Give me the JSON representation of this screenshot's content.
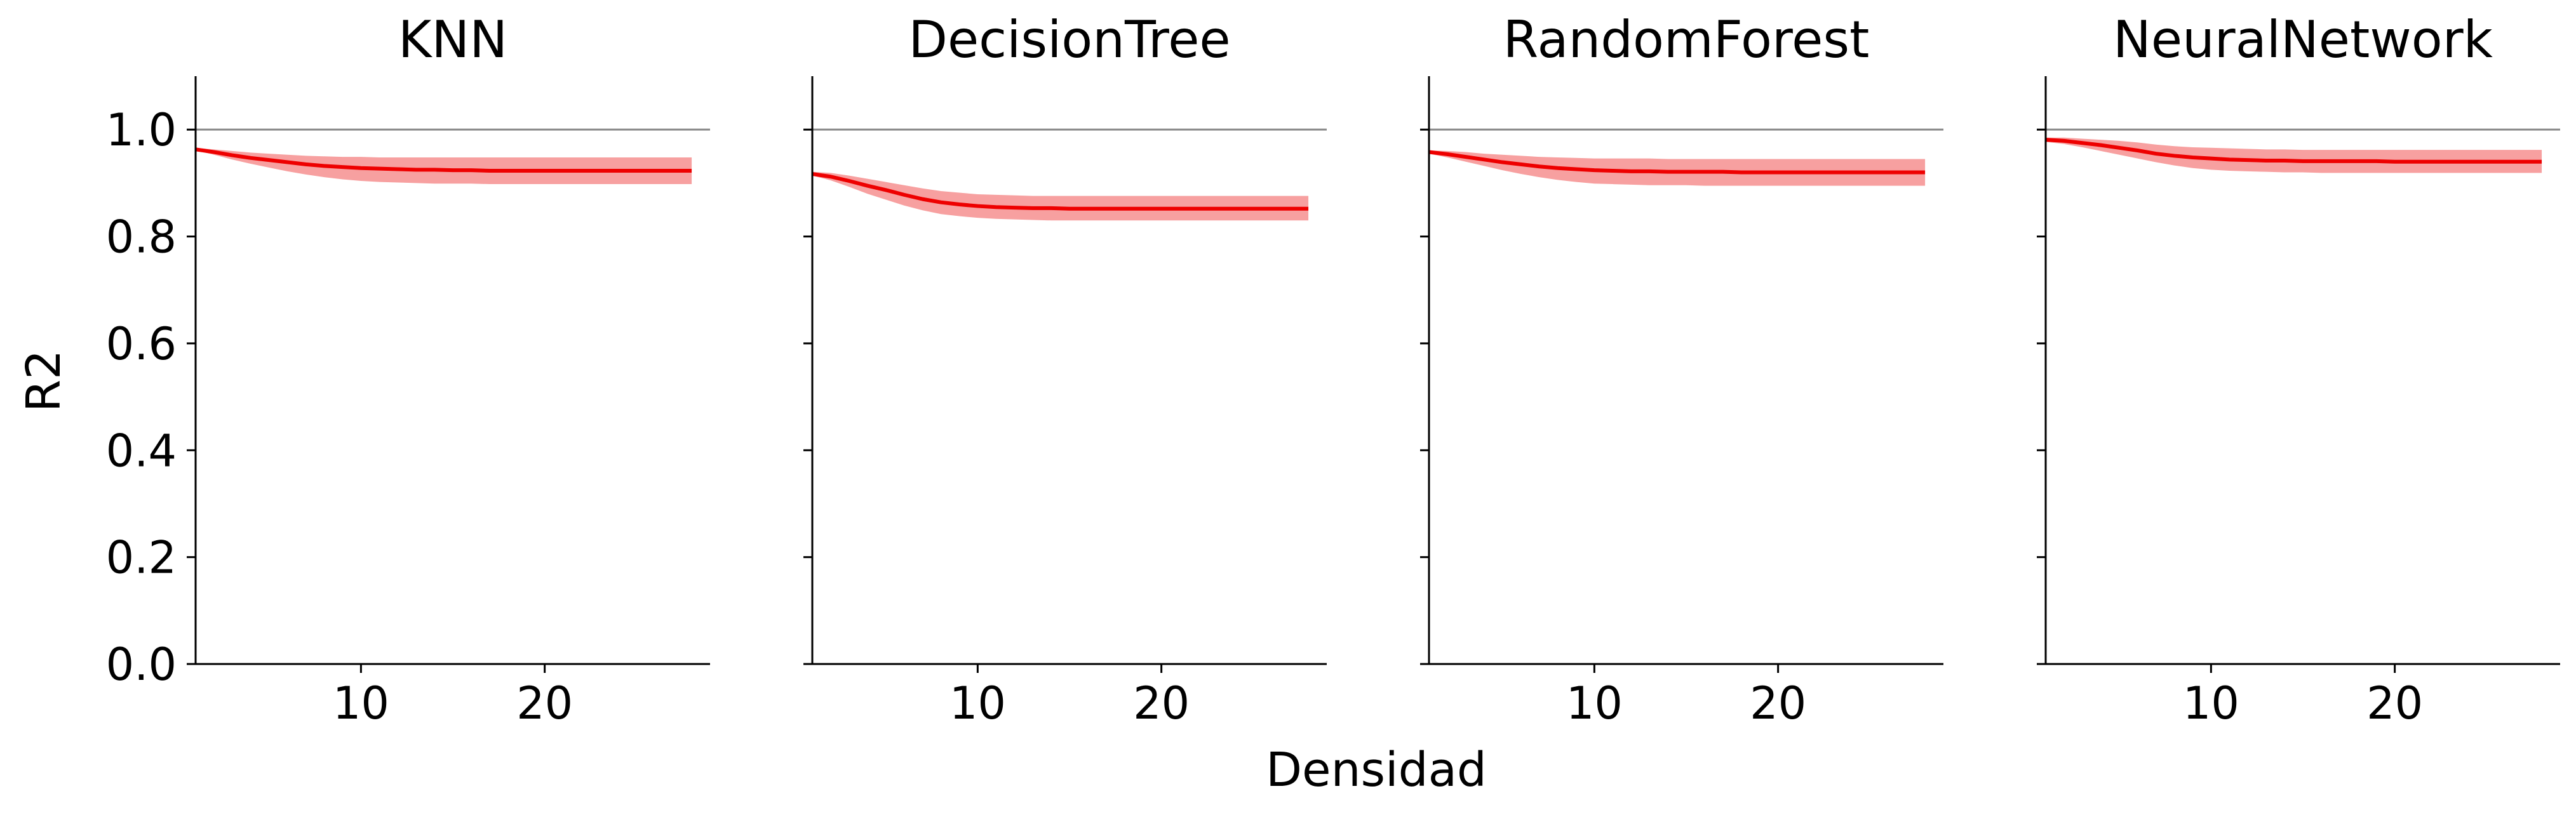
{
  "figure": {
    "xlabel": "Densidad",
    "ylabel": "R2"
  },
  "chart_data": [
    {
      "type": "line",
      "title": "KNN",
      "xlabel": "Densidad",
      "ylabel": "R2",
      "xlim": [
        1,
        29
      ],
      "ylim": [
        0.0,
        1.1
      ],
      "xticks": [
        10,
        20
      ],
      "xtick_labels": [
        "10",
        "20"
      ],
      "yticks": [
        0.0,
        0.2,
        0.4,
        0.6,
        0.8,
        1.0
      ],
      "ytick_labels": [
        "0.0",
        "0.2",
        "0.4",
        "0.6",
        "0.8",
        "1.0"
      ],
      "reference_line": 1.0,
      "grid": false,
      "line_color": "#ee0000",
      "band_color": "#f7a0a0",
      "reference_color": "#888888",
      "series": [
        {
          "x": [
            1,
            2,
            3,
            4,
            5,
            6,
            7,
            8,
            9,
            10,
            11,
            12,
            13,
            14,
            15,
            16,
            17,
            18,
            19,
            20,
            21,
            22,
            23,
            24,
            25,
            26,
            27,
            28
          ],
          "values": [
            0.963,
            0.958,
            0.952,
            0.947,
            0.943,
            0.939,
            0.935,
            0.932,
            0.93,
            0.928,
            0.927,
            0.926,
            0.925,
            0.925,
            0.924,
            0.924,
            0.923,
            0.923,
            0.923,
            0.923,
            0.923,
            0.923,
            0.923,
            0.923,
            0.923,
            0.923,
            0.923,
            0.923
          ],
          "lower": [
            0.961,
            0.953,
            0.944,
            0.936,
            0.929,
            0.922,
            0.916,
            0.911,
            0.907,
            0.904,
            0.902,
            0.901,
            0.9,
            0.899,
            0.899,
            0.899,
            0.898,
            0.898,
            0.898,
            0.898,
            0.898,
            0.898,
            0.898,
            0.898,
            0.898,
            0.898,
            0.898,
            0.898
          ],
          "upper": [
            0.966,
            0.963,
            0.96,
            0.957,
            0.955,
            0.953,
            0.951,
            0.95,
            0.949,
            0.949,
            0.948,
            0.948,
            0.948,
            0.948,
            0.948,
            0.948,
            0.948,
            0.948,
            0.948,
            0.948,
            0.948,
            0.948,
            0.948,
            0.948,
            0.948,
            0.948,
            0.948,
            0.948
          ]
        }
      ]
    },
    {
      "type": "line",
      "title": "DecisionTree",
      "xlabel": "Densidad",
      "ylabel": "R2",
      "xlim": [
        1,
        29
      ],
      "ylim": [
        0.0,
        1.1
      ],
      "xticks": [
        10,
        20
      ],
      "xtick_labels": [
        "10",
        "20"
      ],
      "yticks": [
        0.0,
        0.2,
        0.4,
        0.6,
        0.8,
        1.0
      ],
      "reference_line": 1.0,
      "grid": false,
      "line_color": "#ee0000",
      "band_color": "#f7a0a0",
      "reference_color": "#888888",
      "series": [
        {
          "x": [
            1,
            2,
            3,
            4,
            5,
            6,
            7,
            8,
            9,
            10,
            11,
            12,
            13,
            14,
            15,
            16,
            17,
            18,
            19,
            20,
            21,
            22,
            23,
            24,
            25,
            26,
            27,
            28
          ],
          "values": [
            0.917,
            0.912,
            0.904,
            0.895,
            0.887,
            0.878,
            0.87,
            0.864,
            0.86,
            0.857,
            0.855,
            0.854,
            0.853,
            0.853,
            0.852,
            0.852,
            0.852,
            0.852,
            0.852,
            0.852,
            0.852,
            0.852,
            0.852,
            0.852,
            0.852,
            0.852,
            0.852,
            0.852
          ],
          "lower": [
            0.914,
            0.905,
            0.893,
            0.88,
            0.869,
            0.858,
            0.849,
            0.842,
            0.838,
            0.835,
            0.833,
            0.832,
            0.831,
            0.83,
            0.83,
            0.83,
            0.83,
            0.83,
            0.83,
            0.83,
            0.83,
            0.83,
            0.83,
            0.83,
            0.83,
            0.83,
            0.83,
            0.83
          ],
          "upper": [
            0.921,
            0.919,
            0.914,
            0.908,
            0.902,
            0.896,
            0.89,
            0.885,
            0.882,
            0.879,
            0.878,
            0.877,
            0.876,
            0.876,
            0.876,
            0.876,
            0.876,
            0.876,
            0.876,
            0.876,
            0.876,
            0.876,
            0.876,
            0.876,
            0.876,
            0.876,
            0.876,
            0.876
          ]
        }
      ]
    },
    {
      "type": "line",
      "title": "RandomForest",
      "xlabel": "Densidad",
      "ylabel": "R2",
      "xlim": [
        1,
        29
      ],
      "ylim": [
        0.0,
        1.1
      ],
      "xticks": [
        10,
        20
      ],
      "xtick_labels": [
        "10",
        "20"
      ],
      "yticks": [
        0.0,
        0.2,
        0.4,
        0.6,
        0.8,
        1.0
      ],
      "reference_line": 1.0,
      "grid": false,
      "line_color": "#ee0000",
      "band_color": "#f7a0a0",
      "reference_color": "#888888",
      "series": [
        {
          "x": [
            1,
            2,
            3,
            4,
            5,
            6,
            7,
            8,
            9,
            10,
            11,
            12,
            13,
            14,
            15,
            16,
            17,
            18,
            19,
            20,
            21,
            22,
            23,
            24,
            25,
            26,
            27,
            28
          ],
          "values": [
            0.958,
            0.954,
            0.949,
            0.944,
            0.939,
            0.935,
            0.931,
            0.928,
            0.926,
            0.924,
            0.923,
            0.922,
            0.922,
            0.921,
            0.921,
            0.921,
            0.921,
            0.92,
            0.92,
            0.92,
            0.92,
            0.92,
            0.92,
            0.92,
            0.92,
            0.92,
            0.92,
            0.92
          ],
          "lower": [
            0.955,
            0.948,
            0.94,
            0.932,
            0.924,
            0.917,
            0.911,
            0.906,
            0.902,
            0.899,
            0.898,
            0.897,
            0.896,
            0.896,
            0.896,
            0.895,
            0.895,
            0.895,
            0.895,
            0.895,
            0.895,
            0.895,
            0.895,
            0.895,
            0.895,
            0.895,
            0.895,
            0.895
          ],
          "upper": [
            0.961,
            0.96,
            0.958,
            0.955,
            0.953,
            0.951,
            0.949,
            0.948,
            0.947,
            0.946,
            0.946,
            0.946,
            0.946,
            0.945,
            0.945,
            0.945,
            0.945,
            0.945,
            0.945,
            0.945,
            0.945,
            0.945,
            0.945,
            0.945,
            0.945,
            0.945,
            0.945,
            0.945
          ]
        }
      ]
    },
    {
      "type": "line",
      "title": "NeuralNetwork",
      "xlabel": "Densidad",
      "ylabel": "R2",
      "xlim": [
        1,
        29
      ],
      "ylim": [
        0.0,
        1.1
      ],
      "xticks": [
        10,
        20
      ],
      "xtick_labels": [
        "10",
        "20"
      ],
      "yticks": [
        0.0,
        0.2,
        0.4,
        0.6,
        0.8,
        1.0
      ],
      "reference_line": 1.0,
      "grid": false,
      "line_color": "#ee0000",
      "band_color": "#f7a0a0",
      "reference_color": "#888888",
      "series": [
        {
          "x": [
            1,
            2,
            3,
            4,
            5,
            6,
            7,
            8,
            9,
            10,
            11,
            12,
            13,
            14,
            15,
            16,
            17,
            18,
            19,
            20,
            21,
            22,
            23,
            24,
            25,
            26,
            27,
            28
          ],
          "values": [
            0.981,
            0.979,
            0.975,
            0.971,
            0.966,
            0.961,
            0.955,
            0.951,
            0.948,
            0.946,
            0.944,
            0.943,
            0.942,
            0.942,
            0.941,
            0.941,
            0.941,
            0.941,
            0.941,
            0.94,
            0.94,
            0.94,
            0.94,
            0.94,
            0.94,
            0.94,
            0.94,
            0.94
          ],
          "lower": [
            0.977,
            0.973,
            0.967,
            0.96,
            0.953,
            0.946,
            0.939,
            0.933,
            0.928,
            0.925,
            0.923,
            0.922,
            0.921,
            0.92,
            0.92,
            0.919,
            0.919,
            0.919,
            0.919,
            0.919,
            0.919,
            0.919,
            0.919,
            0.919,
            0.919,
            0.919,
            0.919,
            0.919
          ],
          "upper": [
            0.985,
            0.985,
            0.983,
            0.981,
            0.979,
            0.976,
            0.972,
            0.969,
            0.967,
            0.966,
            0.965,
            0.964,
            0.963,
            0.963,
            0.962,
            0.962,
            0.962,
            0.962,
            0.962,
            0.962,
            0.962,
            0.962,
            0.962,
            0.962,
            0.962,
            0.962,
            0.962,
            0.962
          ]
        }
      ]
    }
  ]
}
